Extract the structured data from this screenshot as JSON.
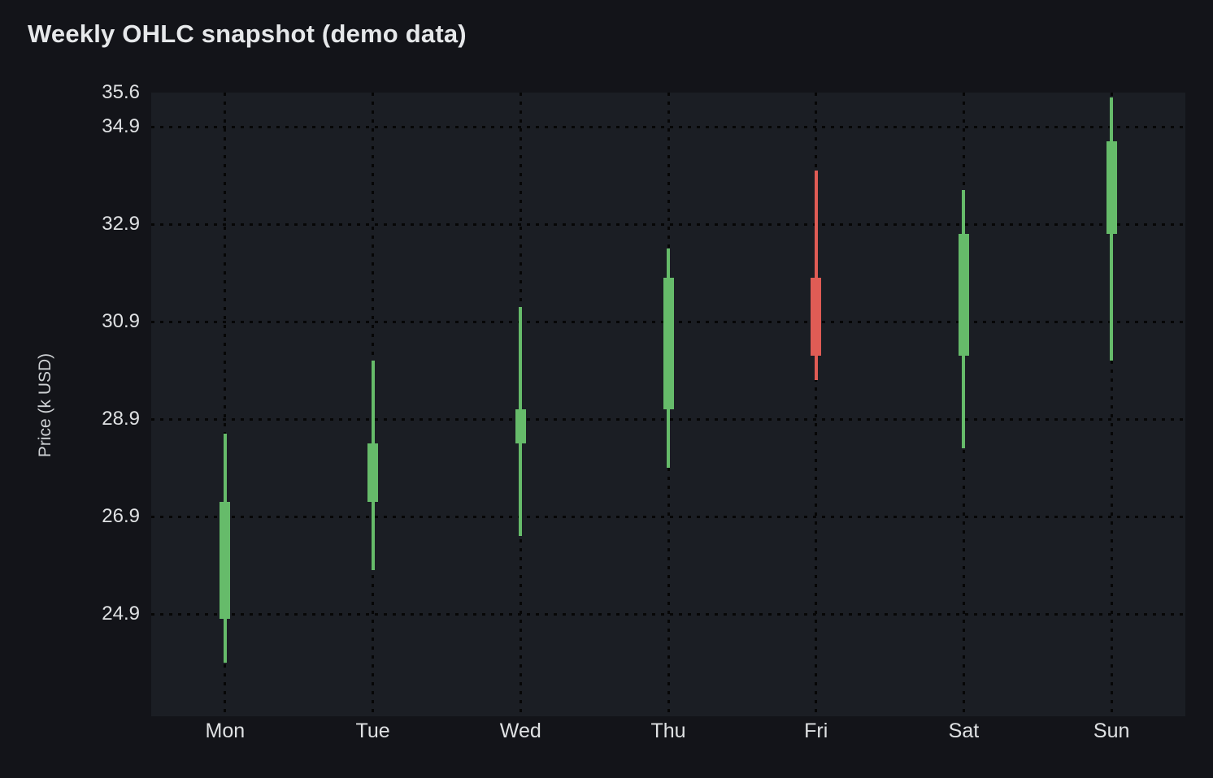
{
  "chart_data": {
    "type": "candlestick",
    "title": "Weekly OHLC snapshot (demo data)",
    "ylabel": "Price (k USD)",
    "categories": [
      "Mon",
      "Tue",
      "Wed",
      "Thu",
      "Fri",
      "Sat",
      "Sun"
    ],
    "series": [
      {
        "name": "OHLC",
        "points": [
          {
            "day": "Mon",
            "open": 24.8,
            "high": 28.6,
            "low": 23.9,
            "close": 27.2,
            "direction": "up"
          },
          {
            "day": "Tue",
            "open": 27.2,
            "high": 30.1,
            "low": 25.8,
            "close": 28.4,
            "direction": "up"
          },
          {
            "day": "Wed",
            "open": 28.4,
            "high": 31.2,
            "low": 26.5,
            "close": 29.1,
            "direction": "up"
          },
          {
            "day": "Thu",
            "open": 29.1,
            "high": 32.4,
            "low": 27.9,
            "close": 31.8,
            "direction": "up"
          },
          {
            "day": "Fri",
            "open": 31.8,
            "high": 34.0,
            "low": 29.7,
            "close": 30.2,
            "direction": "down"
          },
          {
            "day": "Sat",
            "open": 30.2,
            "high": 33.6,
            "low": 28.3,
            "close": 32.7,
            "direction": "up"
          },
          {
            "day": "Sun",
            "open": 32.7,
            "high": 35.5,
            "low": 30.1,
            "close": 34.6,
            "direction": "up"
          }
        ]
      }
    ],
    "y_ticks": [
      {
        "value": 35.6,
        "label": "35.6"
      },
      {
        "value": 34.9,
        "label": "34.9"
      },
      {
        "value": 32.9,
        "label": "32.9"
      },
      {
        "value": 30.9,
        "label": "30.9"
      },
      {
        "value": 28.9,
        "label": "28.9"
      },
      {
        "value": 26.9,
        "label": "26.9"
      },
      {
        "value": 24.9,
        "label": "24.9"
      }
    ],
    "ylim": [
      22.8,
      35.6
    ],
    "grid": "dotted-both-axes",
    "legend": "none",
    "colors": {
      "up": "#66bb6a",
      "down": "#e05c55"
    },
    "theme": {
      "background": "#131419",
      "plot_background": "#1b1e24",
      "grid_dot": "#060606",
      "text": "#dfe1e3"
    }
  }
}
